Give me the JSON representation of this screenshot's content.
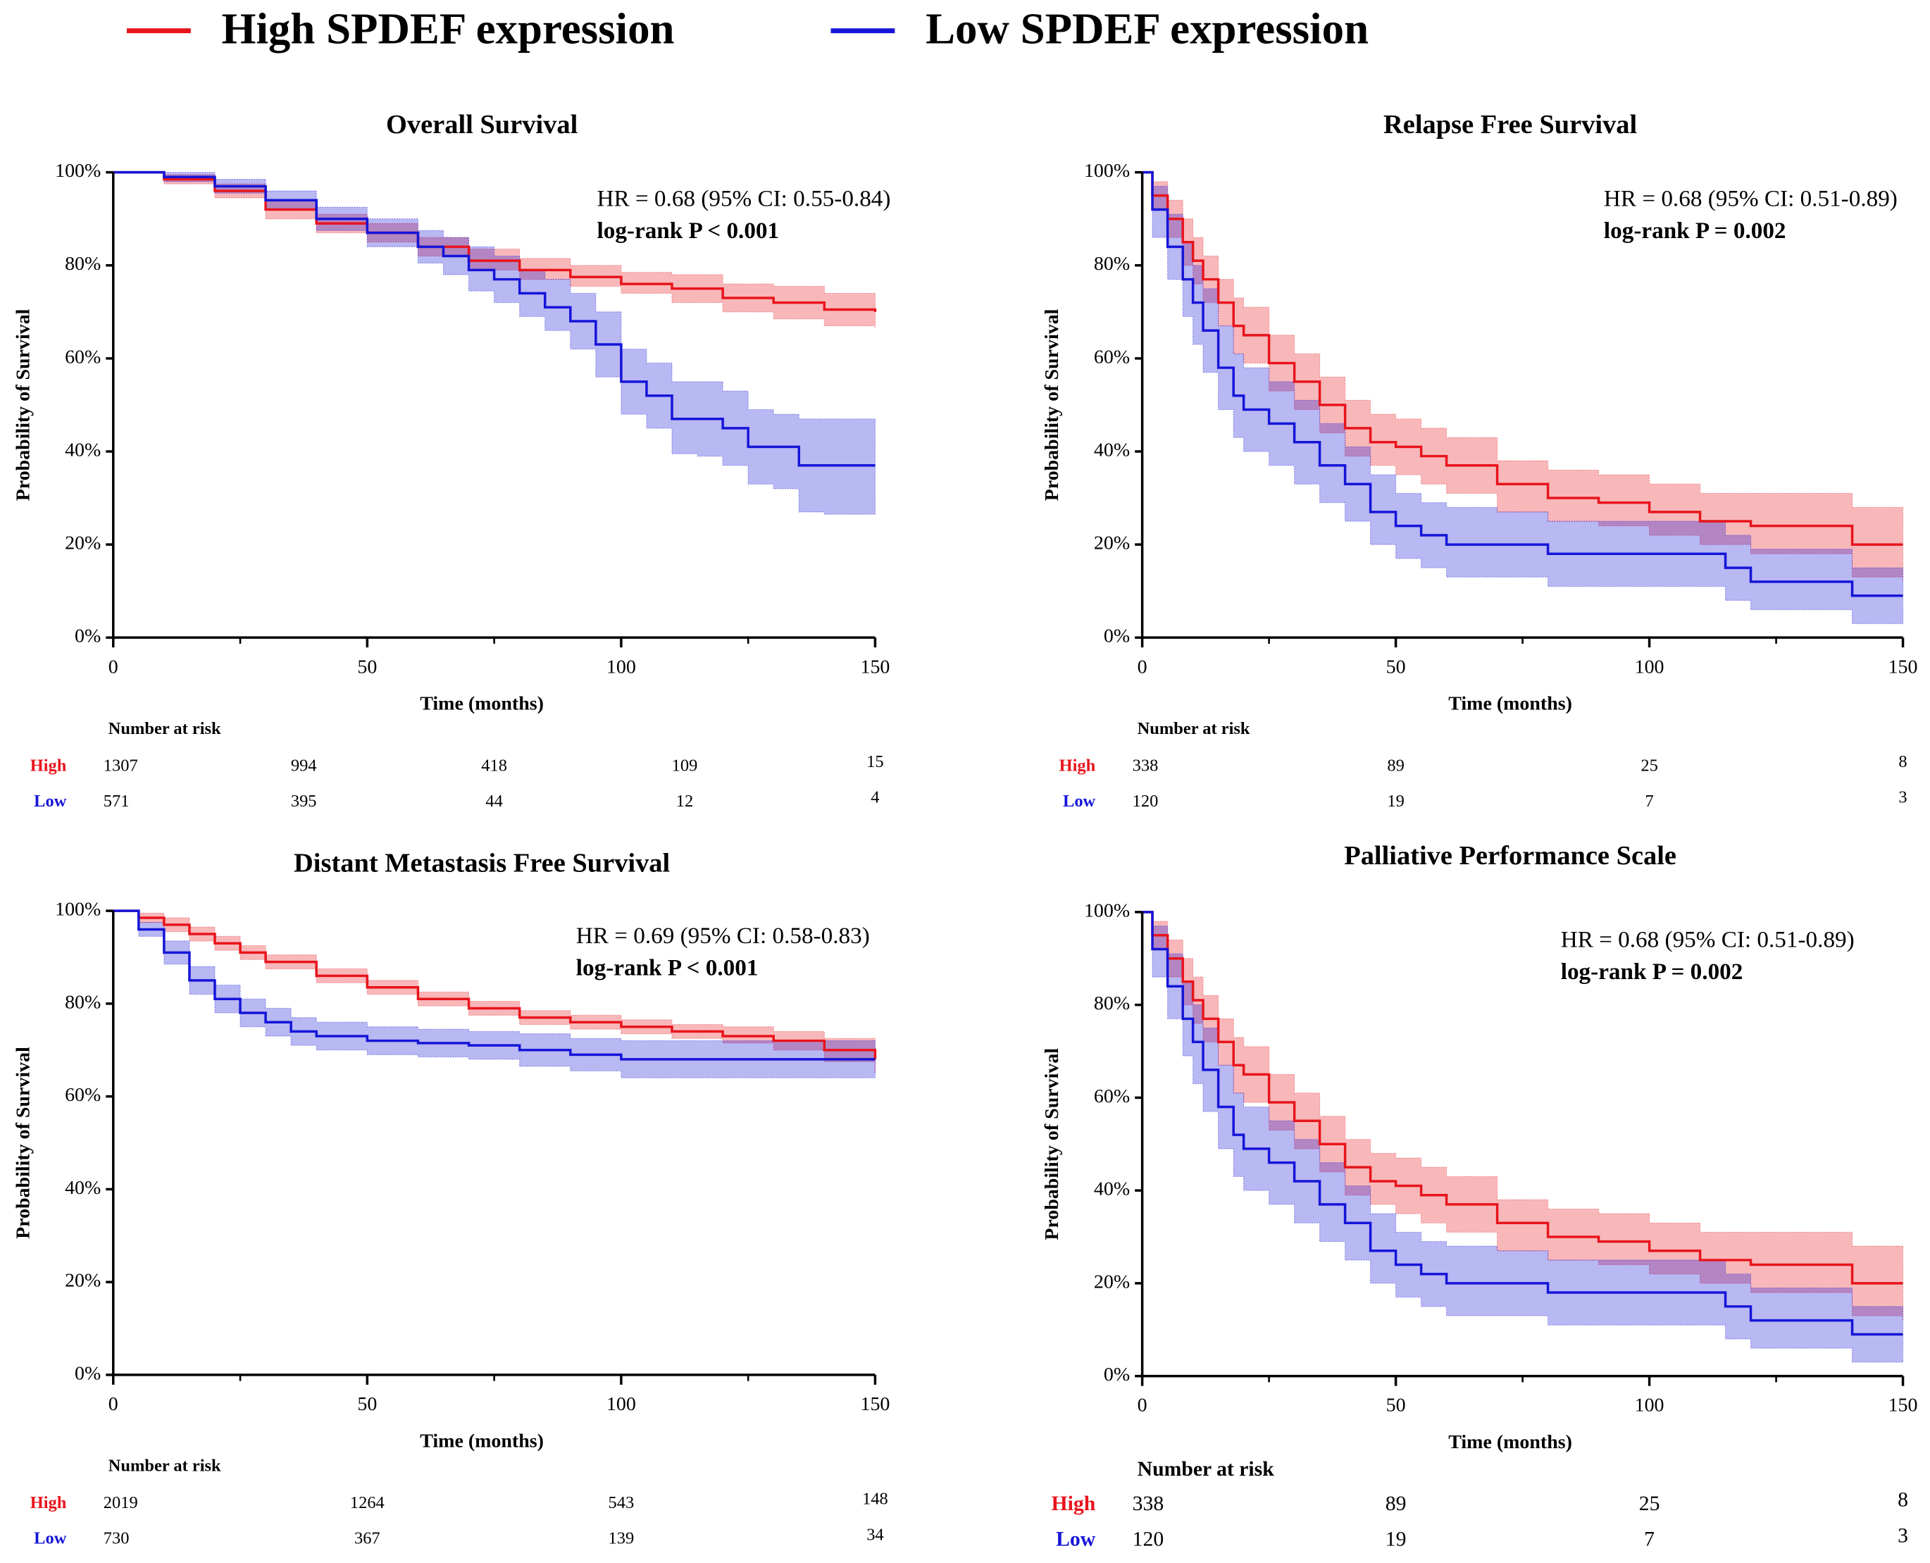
{
  "legend": [
    {
      "label": "High SPDEF expression",
      "color": "#e8141c"
    },
    {
      "label": "Low SPDEF expression",
      "color": "#1515d8"
    }
  ],
  "chart_data": [
    {
      "type": "step",
      "title": "Overall Survival",
      "xlabel": "Time (months)",
      "ylabel": "Probability of Survival",
      "annotations": [
        "HR = 0.68 (95% CI: 0.55-0.84)",
        "log-rank P < 0.001"
      ],
      "xlim": [
        0,
        150
      ],
      "xticks": [
        0,
        50,
        100,
        150
      ],
      "ylim": [
        0,
        100
      ],
      "yticks": [
        {
          "value": 0,
          "label": "0%"
        },
        {
          "value": 20,
          "label": "20%"
        },
        {
          "value": 40,
          "label": "40%"
        },
        {
          "value": 60,
          "label": "60%"
        },
        {
          "value": 80,
          "label": "80%"
        },
        {
          "value": 100,
          "label": "100%"
        }
      ],
      "risk_title": "Number at risk",
      "series": [
        {
          "name": "High",
          "color": "#e8141c",
          "x": [
            0,
            10,
            20,
            30,
            40,
            50,
            60,
            70,
            80,
            90,
            100,
            110,
            120,
            130,
            140,
            150
          ],
          "values": [
            100,
            98.5,
            96,
            92,
            89,
            87,
            84,
            81,
            79,
            77.5,
            76,
            75,
            73,
            72,
            70.5,
            70
          ],
          "upper": [
            100,
            99.5,
            97.5,
            94,
            91,
            89,
            86,
            83.5,
            81.5,
            80,
            78.5,
            78,
            76,
            75.5,
            74,
            74
          ],
          "lower": [
            100,
            97.5,
            94.5,
            90,
            87,
            85,
            82,
            79,
            77,
            75.5,
            74,
            72,
            70,
            68.5,
            67,
            66.5
          ],
          "at_risk": [
            1307,
            994,
            418,
            109,
            15
          ]
        },
        {
          "name": "Low",
          "color": "#1515d8",
          "x": [
            0,
            10,
            20,
            30,
            40,
            50,
            60,
            65,
            70,
            75,
            80,
            85,
            90,
            95,
            100,
            105,
            110,
            115,
            120,
            125,
            130,
            135,
            140,
            150
          ],
          "values": [
            100,
            99,
            97,
            94,
            90,
            87,
            84,
            82,
            79,
            77,
            74,
            71,
            68,
            63,
            55,
            52,
            47,
            47,
            45,
            41,
            41,
            37,
            37,
            37
          ],
          "upper": [
            100,
            100,
            98.5,
            96,
            92.5,
            90,
            87.5,
            86,
            84,
            82,
            79,
            77,
            74,
            70,
            62,
            59,
            55,
            55,
            53,
            49,
            48,
            47,
            47,
            47
          ],
          "lower": [
            100,
            98,
            95.5,
            92,
            87.5,
            84,
            80.5,
            78,
            74.5,
            72,
            69,
            66,
            62,
            56,
            48,
            45,
            39.5,
            39,
            37,
            33,
            32,
            27,
            26.5,
            26.5
          ],
          "at_risk": [
            571,
            395,
            44,
            12,
            4
          ]
        }
      ]
    },
    {
      "type": "step",
      "title": "Relapse Free Survival",
      "xlabel": "Time (months)",
      "ylabel": "Probability of Survival",
      "annotations": [
        "HR = 0.68 (95% CI: 0.51-0.89)",
        "log-rank P = 0.002"
      ],
      "xlim": [
        0,
        150
      ],
      "xticks": [
        0,
        50,
        100,
        150
      ],
      "ylim": [
        0,
        100
      ],
      "yticks": [
        {
          "value": 0,
          "label": "0%"
        },
        {
          "value": 20,
          "label": "20%"
        },
        {
          "value": 40,
          "label": "40%"
        },
        {
          "value": 60,
          "label": "60%"
        },
        {
          "value": 80,
          "label": "80%"
        },
        {
          "value": 100,
          "label": "100%"
        }
      ],
      "risk_title": "Number at risk",
      "series": [
        {
          "name": "High",
          "color": "#e8141c",
          "x": [
            0,
            2,
            5,
            8,
            10,
            12,
            15,
            18,
            20,
            25,
            30,
            35,
            40,
            45,
            50,
            55,
            60,
            70,
            80,
            90,
            100,
            110,
            120,
            130,
            140,
            150
          ],
          "values": [
            100,
            95,
            90,
            85,
            81,
            77,
            72,
            67,
            65,
            59,
            55,
            50,
            45,
            42,
            41,
            39,
            37,
            33,
            30,
            29,
            27,
            25,
            24,
            24,
            20,
            20
          ],
          "upper": [
            100,
            98,
            94,
            90,
            86,
            82,
            77,
            73,
            71,
            65,
            61,
            56,
            51,
            48,
            47,
            45,
            43,
            38,
            36,
            35,
            33,
            31,
            31,
            31,
            28,
            28
          ],
          "lower": [
            100,
            92,
            86,
            80,
            76,
            72,
            67,
            61,
            59,
            53,
            49,
            44,
            39,
            37,
            35,
            33,
            31,
            27,
            25,
            24,
            22,
            20,
            18,
            18,
            13,
            12
          ],
          "at_risk": [
            338,
            89,
            25,
            8
          ]
        },
        {
          "name": "Low",
          "color": "#1515d8",
          "x": [
            0,
            2,
            5,
            8,
            10,
            12,
            15,
            18,
            20,
            25,
            30,
            35,
            40,
            45,
            50,
            55,
            60,
            70,
            80,
            90,
            100,
            110,
            115,
            120,
            130,
            140,
            150
          ],
          "values": [
            100,
            92,
            84,
            77,
            72,
            66,
            58,
            52,
            49,
            46,
            42,
            37,
            33,
            27,
            24,
            22,
            20,
            20,
            18,
            18,
            18,
            18,
            15,
            12,
            12,
            9,
            9
          ],
          "upper": [
            100,
            97,
            91,
            85,
            80,
            75,
            67,
            61,
            58,
            55,
            51,
            46,
            41,
            35,
            31,
            29,
            28,
            27,
            25,
            25,
            25,
            25,
            22,
            19,
            19,
            15,
            15
          ],
          "lower": [
            100,
            86,
            77,
            69,
            63,
            57,
            49,
            43,
            40,
            37,
            33,
            29,
            25,
            20,
            17,
            15,
            13,
            13,
            11,
            11,
            11,
            11,
            8,
            6,
            6,
            3,
            3
          ],
          "at_risk": [
            120,
            19,
            7,
            3
          ]
        }
      ]
    },
    {
      "type": "step",
      "title": "Distant Metastasis Free Survival",
      "xlabel": "Time (months)",
      "ylabel": "Probability of Survival",
      "annotations": [
        "HR = 0.69 (95% CI: 0.58-0.83)",
        "log-rank P < 0.001"
      ],
      "xlim": [
        0,
        150
      ],
      "xticks": [
        0,
        50,
        100,
        150
      ],
      "ylim": [
        0,
        100
      ],
      "yticks": [
        {
          "value": 0,
          "label": "0%"
        },
        {
          "value": 20,
          "label": "20%"
        },
        {
          "value": 40,
          "label": "40%"
        },
        {
          "value": 60,
          "label": "60%"
        },
        {
          "value": 80,
          "label": "80%"
        },
        {
          "value": 100,
          "label": "100%"
        }
      ],
      "risk_title": "Number at risk",
      "series": [
        {
          "name": "High",
          "color": "#e8141c",
          "x": [
            0,
            5,
            10,
            15,
            20,
            25,
            30,
            40,
            50,
            60,
            70,
            80,
            90,
            100,
            110,
            120,
            130,
            140,
            150
          ],
          "values": [
            100,
            98.5,
            97,
            95,
            93,
            91,
            89,
            86,
            83.5,
            81,
            79,
            77,
            76,
            75,
            74,
            73,
            72,
            70,
            68
          ],
          "upper": [
            100,
            99.5,
            98.5,
            96.5,
            94.5,
            92.5,
            90.5,
            87.5,
            85,
            82.5,
            80.5,
            78.5,
            77.5,
            76.5,
            75.5,
            75,
            74,
            72.5,
            71
          ],
          "lower": [
            100,
            97.5,
            95.5,
            93.5,
            91.5,
            89.5,
            87.5,
            84.5,
            82,
            79.5,
            77.5,
            75.5,
            74.5,
            73.5,
            72.5,
            71.5,
            70,
            67.5,
            65
          ],
          "at_risk": [
            2019,
            1264,
            543,
            148
          ]
        },
        {
          "name": "Low",
          "color": "#1515d8",
          "x": [
            0,
            5,
            10,
            15,
            20,
            25,
            30,
            35,
            40,
            50,
            60,
            70,
            80,
            90,
            100,
            120,
            140,
            150
          ],
          "values": [
            100,
            96,
            91,
            85,
            81,
            78,
            76,
            74,
            73,
            72,
            71.5,
            71,
            70,
            69,
            68,
            68,
            68,
            68
          ],
          "upper": [
            100,
            97.5,
            93.5,
            88,
            84,
            81,
            79,
            77,
            76,
            75,
            74.5,
            74,
            73.5,
            72.5,
            72,
            72,
            72,
            72
          ],
          "lower": [
            100,
            94.5,
            88.5,
            82,
            78,
            75,
            73,
            71,
            70,
            69,
            68.5,
            68,
            66.5,
            65.5,
            64,
            64,
            64,
            64
          ],
          "at_risk": [
            730,
            367,
            139,
            34
          ]
        }
      ]
    },
    {
      "type": "step",
      "title": "Palliative Performance Scale",
      "xlabel": "Time (months)",
      "ylabel": "Probability of Survival",
      "annotations": [
        "HR = 0.68 (95% CI: 0.51-0.89)",
        "log-rank P = 0.002"
      ],
      "xlim": [
        0,
        150
      ],
      "xticks": [
        0,
        50,
        100,
        150
      ],
      "ylim": [
        0,
        100
      ],
      "yticks": [
        {
          "value": 0,
          "label": "0%"
        },
        {
          "value": 20,
          "label": "20%"
        },
        {
          "value": 40,
          "label": "40%"
        },
        {
          "value": 60,
          "label": "60%"
        },
        {
          "value": 80,
          "label": "80%"
        },
        {
          "value": 100,
          "label": "100%"
        }
      ],
      "risk_title": "Number at risk",
      "series": [
        {
          "name": "High",
          "color": "#e8141c",
          "x": [
            0,
            2,
            5,
            8,
            10,
            12,
            15,
            18,
            20,
            25,
            30,
            35,
            40,
            45,
            50,
            55,
            60,
            70,
            80,
            90,
            100,
            110,
            120,
            130,
            140,
            150
          ],
          "values": [
            100,
            95,
            90,
            85,
            81,
            77,
            72,
            67,
            65,
            59,
            55,
            50,
            45,
            42,
            41,
            39,
            37,
            33,
            30,
            29,
            27,
            25,
            24,
            24,
            20,
            20
          ],
          "upper": [
            100,
            98,
            94,
            90,
            86,
            82,
            77,
            73,
            71,
            65,
            61,
            56,
            51,
            48,
            47,
            45,
            43,
            38,
            36,
            35,
            33,
            31,
            31,
            31,
            28,
            28
          ],
          "lower": [
            100,
            92,
            86,
            80,
            76,
            72,
            67,
            61,
            59,
            53,
            49,
            44,
            39,
            37,
            35,
            33,
            31,
            27,
            25,
            24,
            22,
            20,
            18,
            18,
            13,
            12
          ],
          "at_risk": [
            338,
            89,
            25,
            8
          ]
        },
        {
          "name": "Low",
          "color": "#1515d8",
          "x": [
            0,
            2,
            5,
            8,
            10,
            12,
            15,
            18,
            20,
            25,
            30,
            35,
            40,
            45,
            50,
            55,
            60,
            70,
            80,
            90,
            100,
            110,
            115,
            120,
            130,
            140,
            150
          ],
          "values": [
            100,
            92,
            84,
            77,
            72,
            66,
            58,
            52,
            49,
            46,
            42,
            37,
            33,
            27,
            24,
            22,
            20,
            20,
            18,
            18,
            18,
            18,
            15,
            12,
            12,
            9,
            9
          ],
          "upper": [
            100,
            97,
            91,
            85,
            80,
            75,
            67,
            61,
            58,
            55,
            51,
            46,
            41,
            35,
            31,
            29,
            28,
            27,
            25,
            25,
            25,
            25,
            22,
            19,
            19,
            15,
            15
          ],
          "lower": [
            100,
            86,
            77,
            69,
            63,
            57,
            49,
            43,
            40,
            37,
            33,
            29,
            25,
            20,
            17,
            15,
            13,
            13,
            11,
            11,
            11,
            11,
            8,
            6,
            6,
            3,
            3
          ],
          "at_risk": [
            120,
            19,
            7,
            3
          ]
        }
      ]
    }
  ]
}
